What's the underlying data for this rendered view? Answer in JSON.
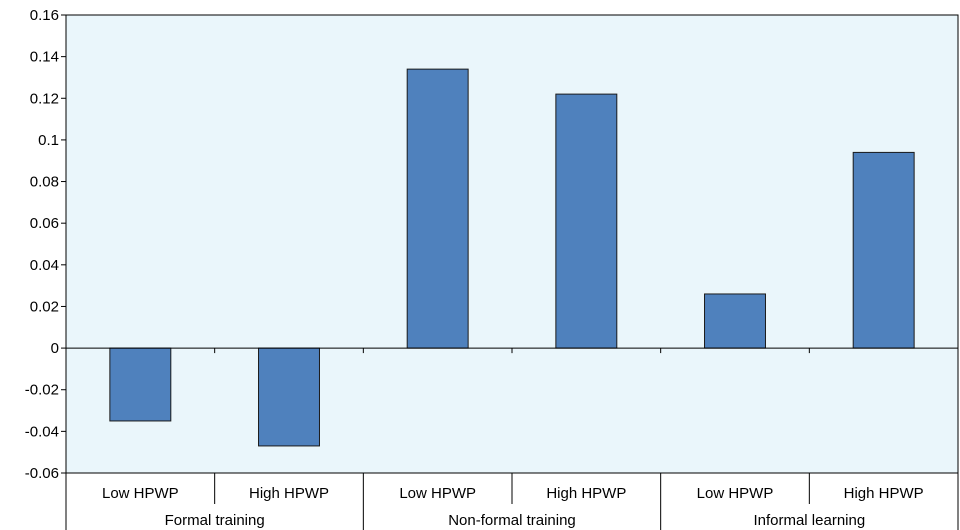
{
  "chart_data": {
    "type": "bar",
    "title": "",
    "xlabel": "",
    "ylabel": "",
    "ylim": [
      -0.06,
      0.16
    ],
    "y_ticks": [
      "0.16",
      "0.14",
      "0.12",
      "0.1",
      "0.08",
      "0.06",
      "0.04",
      "0.02",
      "0",
      "-0.02",
      "-0.04",
      "-0.06"
    ],
    "grid": false,
    "groups": [
      {
        "label": "Formal training",
        "categories": [
          {
            "label": "Low HPWP",
            "value": -0.035
          },
          {
            "label": "High HPWP",
            "value": -0.047
          }
        ]
      },
      {
        "label": "Non-formal training",
        "categories": [
          {
            "label": "Low HPWP",
            "value": 0.134
          },
          {
            "label": "High HPWP",
            "value": 0.122
          }
        ]
      },
      {
        "label": "Informal learning",
        "categories": [
          {
            "label": "Low HPWP",
            "value": 0.026
          },
          {
            "label": "High HPWP",
            "value": 0.094
          }
        ]
      }
    ]
  },
  "colors": {
    "plot_background": "#eaf6fb",
    "bar_fill": "#4f81bd",
    "bar_stroke": "#1a1a1a",
    "axis": "#000000"
  }
}
